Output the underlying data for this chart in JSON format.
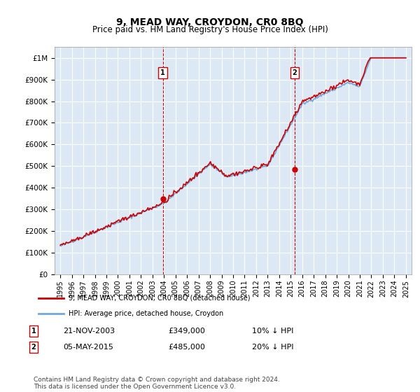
{
  "title": "9, MEAD WAY, CROYDON, CR0 8BQ",
  "subtitle": "Price paid vs. HM Land Registry's House Price Index (HPI)",
  "ylabel_ticks": [
    "£0",
    "£100K",
    "£200K",
    "£300K",
    "£400K",
    "£500K",
    "£600K",
    "£700K",
    "£800K",
    "£900K",
    "£1M"
  ],
  "ytick_values": [
    0,
    100000,
    200000,
    300000,
    400000,
    500000,
    600000,
    700000,
    800000,
    900000,
    1000000
  ],
  "ylim": [
    0,
    1050000
  ],
  "background_color": "#ffffff",
  "plot_bg_color": "#dce9f5",
  "grid_color": "#ffffff",
  "line_color_hpi": "#6fa8dc",
  "line_color_price": "#cc0000",
  "transaction1": {
    "date": "21-NOV-2003",
    "price": 349000,
    "pct": "10%",
    "dir": "↓"
  },
  "transaction2": {
    "date": "05-MAY-2015",
    "price": 485000,
    "pct": "20%",
    "dir": "↓"
  },
  "legend_label1": "9, MEAD WAY, CROYDON, CR0 8BQ (detached house)",
  "legend_label2": "HPI: Average price, detached house, Croydon",
  "footer": "Contains HM Land Registry data © Crown copyright and database right 2024.\nThis data is licensed under the Open Government Licence v3.0.",
  "xtick_years": [
    1995,
    1996,
    1997,
    1998,
    1999,
    2000,
    2001,
    2002,
    2003,
    2004,
    2005,
    2006,
    2007,
    2008,
    2009,
    2010,
    2011,
    2012,
    2013,
    2014,
    2015,
    2016,
    2017,
    2018,
    2019,
    2020,
    2021,
    2022,
    2023,
    2024,
    2025
  ]
}
